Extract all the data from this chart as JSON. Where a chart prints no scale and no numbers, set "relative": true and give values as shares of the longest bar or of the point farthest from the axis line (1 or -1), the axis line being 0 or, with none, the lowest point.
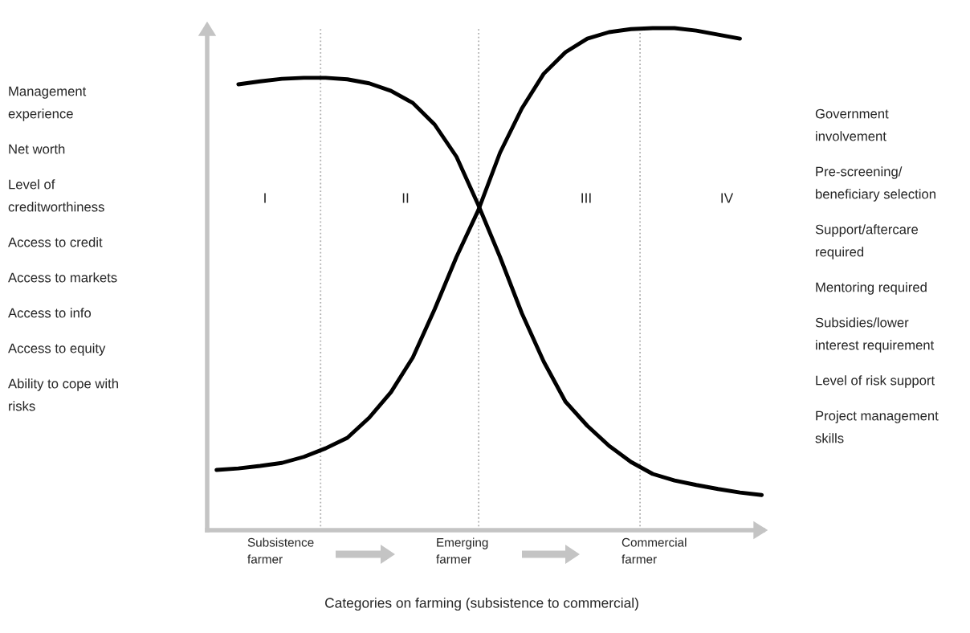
{
  "chart_data": {
    "type": "line",
    "relative": true,
    "categories": [
      null,
      null,
      null,
      null,
      null,
      null,
      null,
      null,
      null,
      null,
      null,
      null,
      null,
      null,
      null,
      null,
      null,
      null,
      null,
      null,
      null,
      null,
      null,
      null,
      null,
      null
    ],
    "series": [
      {
        "color": "#000000",
        "values": [
          null,
          0.888,
          0.894,
          0.899,
          0.901,
          0.901,
          0.898,
          0.89,
          0.875,
          0.851,
          0.808,
          0.744,
          0.648,
          0.544,
          0.432,
          0.336,
          0.256,
          0.208,
          0.168,
          0.136,
          0.112,
          0.099,
          0.09,
          0.082,
          0.075,
          0.07
        ]
      },
      {
        "color": "#000000",
        "values": [
          0.12,
          0.123,
          0.128,
          0.134,
          0.146,
          0.163,
          0.184,
          0.224,
          0.275,
          0.344,
          0.44,
          0.544,
          0.637,
          0.752,
          0.84,
          0.909,
          0.952,
          0.979,
          0.992,
          0.998,
          1,
          1,
          0.995,
          0.987,
          0.979,
          null
        ]
      }
    ],
    "ylabel": "Management\nexperience\n\nNet worth\n\nLevel of\ncreditworthiness\n\nAccess to credit\n\nAccess to markets\n\nAccess to info\n\nAccess to equity\n\nAbility to cope with\nrisks",
    "y2label": "Government\ninvolvement\n\nPre-screening/\nbeneficiary selection\n\nSupport/aftercare\nrequired\n\nMentoring required\n\nSubsidies/lower\ninterest requirement\n\nLevel of risk support\n\nProject management\nskills",
    "xlabel": "Categories on farming (subsistence to commercial)",
    "annotations": [
      "Subsistence\nfarmer",
      "Emerging\nfarmer",
      "Commercial\nfarmer",
      "I",
      "II",
      "III",
      "IV"
    ],
    "line_style": "solid",
    "marker": "none",
    "legend": false
  }
}
